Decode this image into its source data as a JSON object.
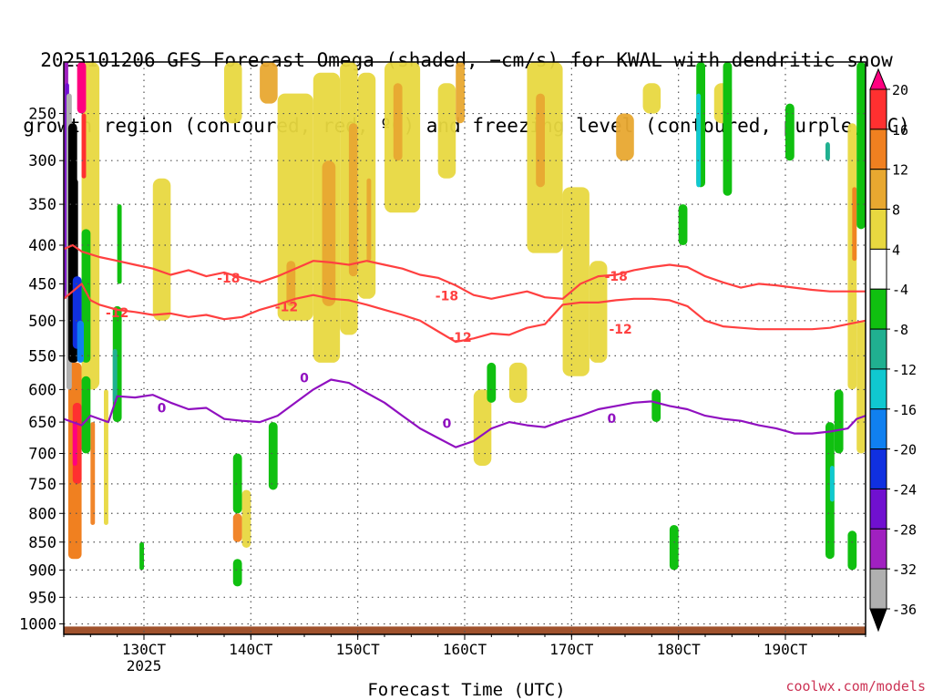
{
  "title_lines": [
    "2025101206 GFS Forecast Omega (shaded, −cm/s) for KWAL with dendritic snow",
    "growth region (contoured, red, ºC) and freezing level (contoured, purple, ºC)"
  ],
  "credit": "coolwx.com/models",
  "chart_data": {
    "type": "heatmap",
    "xlabel": "Forecast Time (UTC)",
    "ylabel": "",
    "x_ticks": [
      {
        "label": "130CT",
        "hour": 18
      },
      {
        "label": "140CT",
        "hour": 42
      },
      {
        "label": "150CT",
        "hour": 66
      },
      {
        "label": "160CT",
        "hour": 90
      },
      {
        "label": "170CT",
        "hour": 114
      },
      {
        "label": "180CT",
        "hour": 138
      },
      {
        "label": "190CT",
        "hour": 162
      }
    ],
    "x_sublabel": "2025",
    "xlim_hours": [
      0,
      180
    ],
    "y_ticks": [
      250,
      300,
      350,
      400,
      450,
      500,
      550,
      600,
      650,
      700,
      750,
      800,
      850,
      900,
      950,
      1000
    ],
    "ylim_hpa": [
      200,
      1020
    ],
    "colorbar": {
      "labels": [
        "20",
        "16",
        "12",
        "8",
        "4",
        "-4",
        "-8",
        "-12",
        "-16",
        "-20",
        "-24",
        "-28",
        "-32",
        "-36"
      ],
      "colors": [
        "#ff0080",
        "#ff3030",
        "#f08020",
        "#e8a830",
        "#e8d840",
        "#ffffff",
        "#10c010",
        "#20b090",
        "#10c8d0",
        "#1080f0",
        "#1030e0",
        "#7010d0",
        "#a020c0",
        "#b0b0b0",
        "#000000"
      ]
    },
    "contour_labels": [
      {
        "text": "-18",
        "color": "#ff4040"
      },
      {
        "text": "-12",
        "color": "#ff4040"
      },
      {
        "text": "-12",
        "color": "#ff4040"
      },
      {
        "text": "-18",
        "color": "#ff4040"
      },
      {
        "text": "-12",
        "color": "#ff4040"
      },
      {
        "text": "-18",
        "color": "#ff4040"
      },
      {
        "text": "-12",
        "color": "#ff4040"
      },
      {
        "text": "0",
        "color": "#9010c0"
      },
      {
        "text": "0",
        "color": "#9010c0"
      },
      {
        "text": "0",
        "color": "#9010c0"
      },
      {
        "text": "0",
        "color": "#9010c0"
      }
    ],
    "series": [
      {
        "color": "#ff4040",
        "x": [
          0,
          2,
          4,
          8,
          12,
          16,
          20,
          24,
          28,
          32,
          36,
          40,
          44,
          48,
          52,
          56,
          60,
          64,
          68,
          72,
          76,
          80,
          84,
          88,
          92,
          96,
          100,
          104,
          108,
          112,
          116,
          120,
          124,
          128,
          132,
          136,
          140,
          144,
          148,
          152,
          156,
          160,
          164,
          168,
          172,
          176,
          180
        ],
        "y": [
          405,
          400,
          408,
          415,
          420,
          425,
          430,
          438,
          432,
          440,
          435,
          442,
          448,
          440,
          430,
          420,
          422,
          425,
          420,
          425,
          430,
          438,
          442,
          452,
          465,
          470,
          465,
          460,
          468,
          470,
          450,
          440,
          438,
          432,
          428,
          425,
          428,
          440,
          448,
          455,
          450,
          452,
          455,
          458,
          460,
          460,
          460
        ]
      },
      {
        "color": "#ff4040",
        "x": [
          0,
          2,
          4,
          6,
          8,
          12,
          16,
          20,
          24,
          28,
          32,
          36,
          40,
          44,
          48,
          52,
          56,
          60,
          64,
          68,
          72,
          76,
          80,
          84,
          88,
          92,
          96,
          100,
          104,
          108,
          112,
          116,
          120,
          124,
          128,
          132,
          136,
          140,
          144,
          148,
          152,
          156,
          160,
          164,
          168,
          172,
          176,
          180
        ],
        "y": [
          470,
          460,
          450,
          472,
          478,
          485,
          488,
          492,
          490,
          495,
          492,
          498,
          495,
          485,
          478,
          470,
          465,
          470,
          472,
          478,
          485,
          492,
          500,
          515,
          530,
          525,
          518,
          520,
          510,
          505,
          478,
          475,
          475,
          472,
          470,
          470,
          472,
          480,
          500,
          508,
          510,
          512,
          512,
          512,
          512,
          510,
          505,
          500
        ]
      },
      {
        "color": "#9010c0",
        "x": [
          0,
          2,
          4,
          6,
          8,
          10,
          12,
          16,
          20,
          24,
          28,
          32,
          36,
          40,
          44,
          48,
          52,
          56,
          60,
          64,
          68,
          72,
          76,
          80,
          84,
          88,
          92,
          96,
          100,
          104,
          108,
          112,
          116,
          120,
          124,
          128,
          132,
          136,
          140,
          144,
          148,
          152,
          156,
          160,
          164,
          168,
          172,
          176,
          178,
          180
        ],
        "y": [
          645,
          650,
          655,
          640,
          645,
          650,
          610,
          612,
          608,
          620,
          630,
          628,
          645,
          648,
          650,
          640,
          620,
          600,
          585,
          590,
          605,
          620,
          640,
          660,
          675,
          690,
          680,
          660,
          650,
          655,
          658,
          648,
          640,
          630,
          625,
          620,
          618,
          625,
          630,
          640,
          645,
          648,
          655,
          660,
          668,
          668,
          665,
          660,
          645,
          640
        ]
      }
    ]
  }
}
